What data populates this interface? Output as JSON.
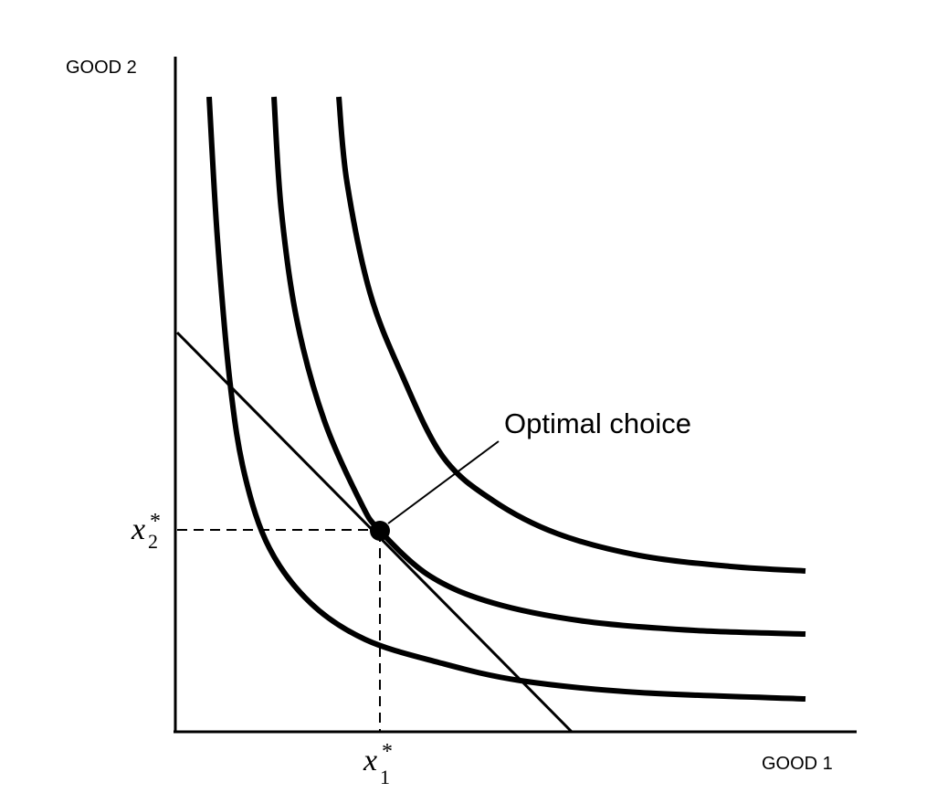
{
  "axes": {
    "x_label": "GOOD 1",
    "y_label": "GOOD 2"
  },
  "annotation": {
    "label": "Optimal choice"
  },
  "optimal_bundle": {
    "x_symbol": "x",
    "x_subscript": "1",
    "y_symbol": "x",
    "y_subscript": "2",
    "star": "*"
  },
  "curves": {
    "indifference_curve_count": 3,
    "budget_line_count": 1
  },
  "colors": {
    "ink": "#000000",
    "background": "#ffffff"
  }
}
